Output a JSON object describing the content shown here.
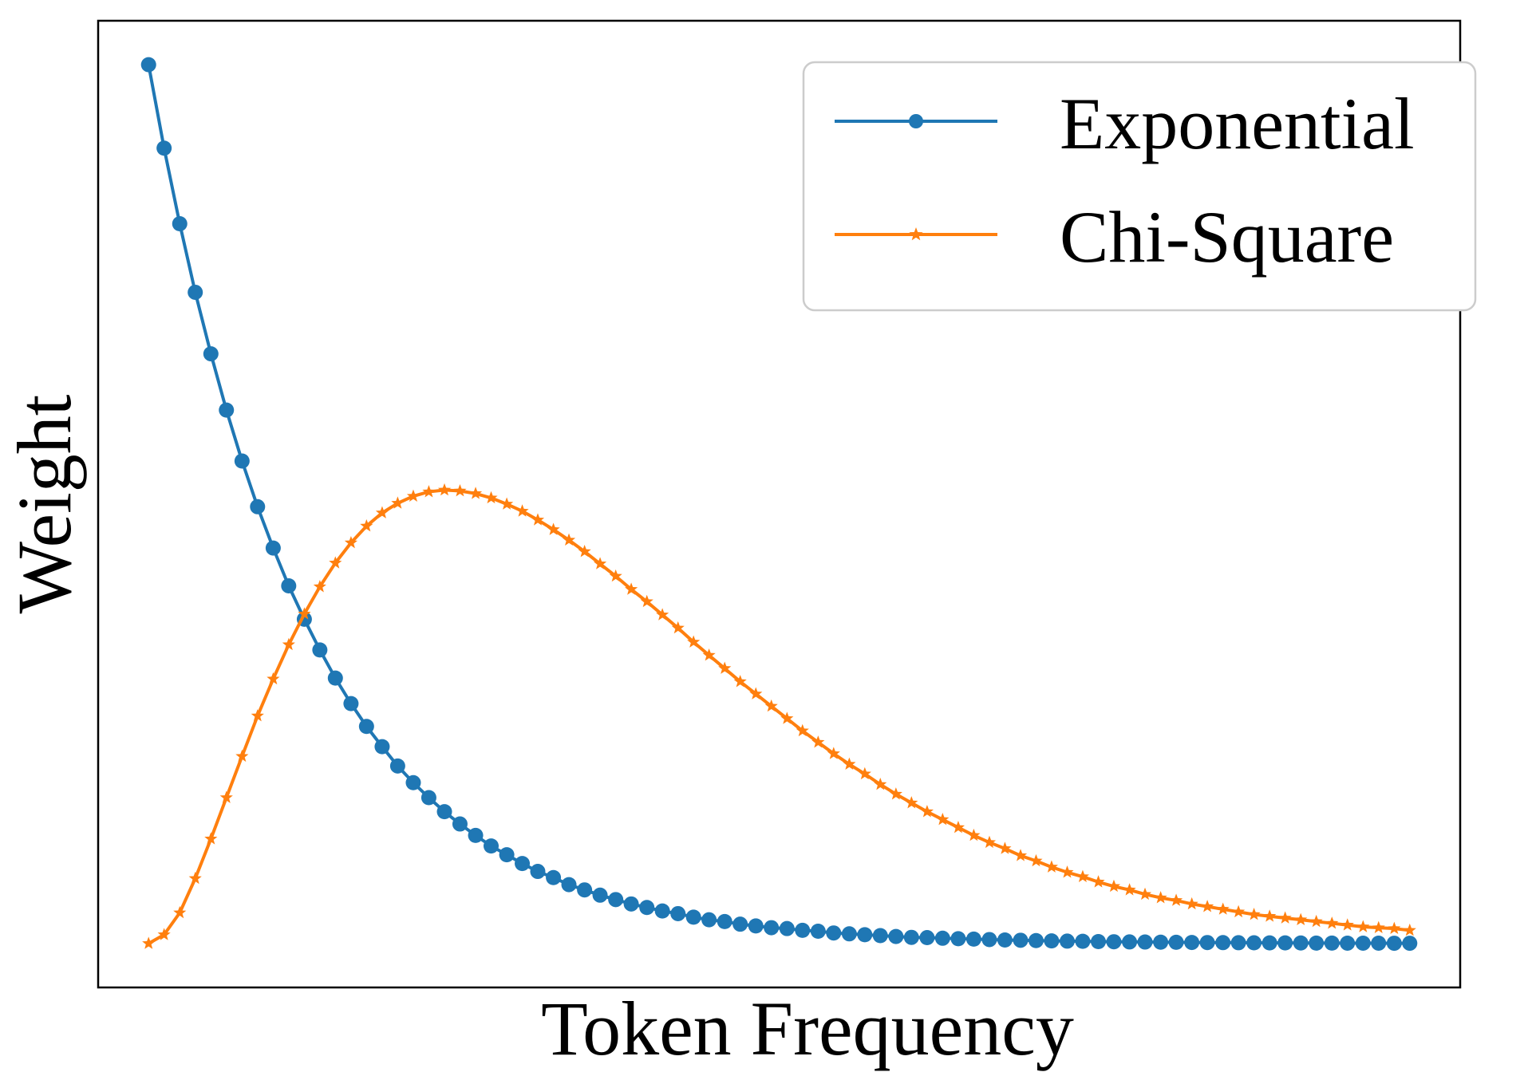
{
  "chart_data": {
    "type": "line",
    "title": "",
    "xlabel": "Token Frequency",
    "ylabel": "Weight",
    "x_ticks_shown": false,
    "y_ticks_shown": false,
    "grid": false,
    "legend_position": "top-right",
    "xlim": [
      -0.04,
      1.04
    ],
    "ylim": [
      -0.05,
      1.05
    ],
    "series": [
      {
        "name": "Exponential",
        "color": "#1f77b4",
        "marker": "circle",
        "x": [
          0,
          0.0123,
          0.0247,
          0.037,
          0.0494,
          0.0617,
          0.0741,
          0.0864,
          0.0988,
          0.1111,
          0.1235,
          0.1358,
          0.1481,
          0.1605,
          0.1728,
          0.1852,
          0.1975,
          0.2099,
          0.2222,
          0.2346,
          0.2469,
          0.2593,
          0.2716,
          0.284,
          0.2963,
          0.3086,
          0.321,
          0.3333,
          0.3457,
          0.358,
          0.3704,
          0.3827,
          0.3951,
          0.4074,
          0.4198,
          0.4321,
          0.4444,
          0.4568,
          0.4691,
          0.4815,
          0.4938,
          0.5062,
          0.5185,
          0.5309,
          0.5432,
          0.5556,
          0.5679,
          0.5802,
          0.5926,
          0.6049,
          0.6173,
          0.6296,
          0.642,
          0.6543,
          0.6667,
          0.679,
          0.6914,
          0.7037,
          0.716,
          0.7284,
          0.7407,
          0.7531,
          0.7654,
          0.7778,
          0.7901,
          0.8025,
          0.8148,
          0.8272,
          0.8395,
          0.8519,
          0.8642,
          0.8765,
          0.8889,
          0.9012,
          0.9136,
          0.9259,
          0.9383,
          0.9506,
          0.963,
          0.9753,
          0.9877,
          1.0
        ],
        "y": [
          1.0,
          0.905,
          0.819,
          0.741,
          0.671,
          0.607,
          0.549,
          0.497,
          0.45,
          0.407,
          0.369,
          0.334,
          0.302,
          0.273,
          0.247,
          0.224,
          0.202,
          0.183,
          0.166,
          0.15,
          0.136,
          0.123,
          0.111,
          0.101,
          0.091,
          0.082,
          0.075,
          0.067,
          0.061,
          0.055,
          0.05,
          0.045,
          0.041,
          0.037,
          0.034,
          0.03,
          0.027,
          0.025,
          0.022,
          0.02,
          0.018,
          0.017,
          0.015,
          0.014,
          0.012,
          0.011,
          0.01,
          0.009,
          0.008,
          0.007,
          0.0067,
          0.006,
          0.0055,
          0.005,
          0.0045,
          0.004,
          0.0037,
          0.0033,
          0.003,
          0.0027,
          0.0025,
          0.0022,
          0.002,
          0.0018,
          0.0017,
          0.0015,
          0.0014,
          0.0012,
          0.0011,
          0.001,
          0.0009,
          0.0008,
          0.0007,
          0.0007,
          0.0006,
          0.0005,
          0.0005,
          0.0004,
          0.0004,
          0.0004,
          0.0003,
          0.0003
        ]
      },
      {
        "name": "Chi-Square",
        "color": "#ff7f0e",
        "marker": "star",
        "x": [
          0,
          0.0123,
          0.0247,
          0.037,
          0.0494,
          0.0617,
          0.0741,
          0.0864,
          0.0988,
          0.1111,
          0.1235,
          0.1358,
          0.1481,
          0.1605,
          0.1728,
          0.1852,
          0.1975,
          0.2099,
          0.2222,
          0.2346,
          0.2469,
          0.2593,
          0.2716,
          0.284,
          0.2963,
          0.3086,
          0.321,
          0.3333,
          0.3457,
          0.358,
          0.3704,
          0.3827,
          0.3951,
          0.4074,
          0.4198,
          0.4321,
          0.4444,
          0.4568,
          0.4691,
          0.4815,
          0.4938,
          0.5062,
          0.5185,
          0.5309,
          0.5432,
          0.5556,
          0.5679,
          0.5802,
          0.5926,
          0.6049,
          0.6173,
          0.6296,
          0.642,
          0.6543,
          0.6667,
          0.679,
          0.6914,
          0.7037,
          0.716,
          0.7284,
          0.7407,
          0.7531,
          0.7654,
          0.7778,
          0.7901,
          0.8025,
          0.8148,
          0.8272,
          0.8395,
          0.8519,
          0.8642,
          0.8765,
          0.8889,
          0.9012,
          0.9136,
          0.9259,
          0.9383,
          0.9506,
          0.963,
          0.9753,
          0.9877,
          1.0
        ],
        "y": [
          0.0,
          0.01,
          0.035,
          0.074,
          0.119,
          0.166,
          0.213,
          0.259,
          0.301,
          0.34,
          0.375,
          0.406,
          0.433,
          0.456,
          0.475,
          0.49,
          0.501,
          0.509,
          0.514,
          0.516,
          0.515,
          0.512,
          0.507,
          0.5,
          0.492,
          0.482,
          0.471,
          0.459,
          0.446,
          0.432,
          0.418,
          0.403,
          0.389,
          0.374,
          0.359,
          0.343,
          0.328,
          0.313,
          0.298,
          0.284,
          0.27,
          0.256,
          0.242,
          0.229,
          0.216,
          0.204,
          0.193,
          0.181,
          0.17,
          0.16,
          0.15,
          0.141,
          0.132,
          0.123,
          0.115,
          0.108,
          0.1,
          0.094,
          0.087,
          0.081,
          0.076,
          0.07,
          0.065,
          0.061,
          0.056,
          0.052,
          0.049,
          0.045,
          0.042,
          0.039,
          0.036,
          0.033,
          0.031,
          0.029,
          0.027,
          0.025,
          0.023,
          0.021,
          0.019,
          0.018,
          0.017,
          0.015
        ]
      }
    ]
  }
}
